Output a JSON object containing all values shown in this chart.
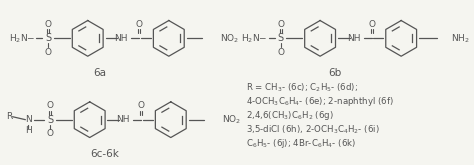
{
  "background_color": "#f5f5f0",
  "fig_width": 4.74,
  "fig_height": 1.65,
  "dpi": 100,
  "text_R_lines": [
    "R = CH$_3$- (6c); C$_2$H$_5$- (6d);",
    "4-OCH$_3$C$_6$H$_4$- (6e); 2-naphthyl (6f)",
    "2,4,6(CH$_3$)C$_6$H$_2$ (6g)",
    "3,5-diCl (6h), 2-OCH$_3$C$_4$H$_2$- (6i)",
    "C$_6$H$_5$- (6j); 4Br-C$_6$H$_4$- (6k)"
  ],
  "struct_color": "#555555",
  "font_size_label": 7.5,
  "font_size_struct": 6.5,
  "font_size_text": 6.2
}
